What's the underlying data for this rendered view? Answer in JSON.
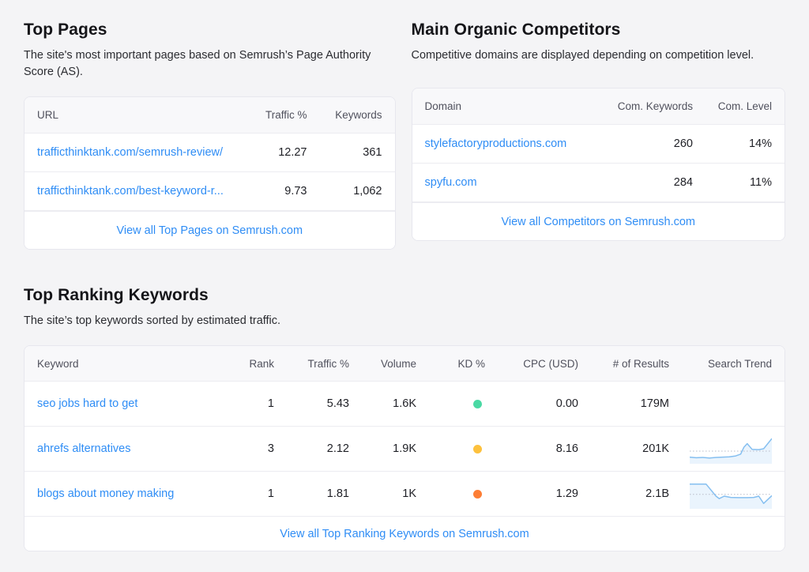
{
  "colors": {
    "link": "#2f8df5",
    "spark_line": "#85bff0",
    "spark_fill": "#eaf4fd",
    "spark_dotted": "#b9bcc9",
    "kd_green": "#4ad9a4",
    "kd_yellow": "#fdc13d",
    "kd_orange": "#fd7e35"
  },
  "top_pages": {
    "title": "Top Pages",
    "description": "The site's most important pages based on Semrush’s Page Authority Score (AS).",
    "columns": {
      "url": "URL",
      "traffic": "Traffic %",
      "keywords": "Keywords"
    },
    "rows": [
      {
        "url": "trafficthinktank.com/semrush-review/",
        "traffic": "12.27",
        "keywords": "361"
      },
      {
        "url": "trafficthinktank.com/best-keyword-r...",
        "traffic": "9.73",
        "keywords": "1,062"
      }
    ],
    "footer_link": "View all Top Pages on Semrush.com"
  },
  "competitors": {
    "title": "Main Organic Competitors",
    "description": "Competitive domains are displayed depending on competition level.",
    "columns": {
      "domain": "Domain",
      "com_keywords": "Com. Keywords",
      "com_level": "Com. Level"
    },
    "rows": [
      {
        "domain": "stylefactoryproductions.com",
        "com_keywords": "260",
        "com_level": "14%"
      },
      {
        "domain": "spyfu.com",
        "com_keywords": "284",
        "com_level": "11%"
      }
    ],
    "footer_link": "View all Competitors on Semrush.com"
  },
  "top_keywords": {
    "title": "Top Ranking Keywords",
    "description": "The site’s top keywords sorted by estimated traffic.",
    "columns": {
      "keyword": "Keyword",
      "rank": "Rank",
      "traffic": "Traffic %",
      "volume": "Volume",
      "kd": "KD %",
      "cpc": "CPC (USD)",
      "results": "# of Results",
      "trend": "Search Trend"
    },
    "rows": [
      {
        "keyword": "seo jobs hard to get",
        "rank": "1",
        "traffic": "5.43",
        "volume": "1.6K",
        "kd_color": "#4ad9a4",
        "cpc": "0.00",
        "results": "179M",
        "trend": [],
        "trend_mid": 0
      },
      {
        "keyword": "ahrefs alternatives",
        "rank": "3",
        "traffic": "2.12",
        "volume": "1.9K",
        "kd_color": "#fdc13d",
        "cpc": "8.16",
        "results": "201K",
        "trend": [
          [
            0,
            78
          ],
          [
            8,
            80
          ],
          [
            16,
            79
          ],
          [
            24,
            81
          ],
          [
            32,
            79
          ],
          [
            40,
            78
          ],
          [
            48,
            77
          ],
          [
            56,
            74
          ],
          [
            62,
            68
          ],
          [
            66,
            45
          ],
          [
            70,
            33
          ],
          [
            76,
            52
          ],
          [
            84,
            53
          ],
          [
            90,
            50
          ],
          [
            100,
            16
          ]
        ],
        "trend_mid": 58
      },
      {
        "keyword": "blogs about money making",
        "rank": "1",
        "traffic": "1.81",
        "volume": "1K",
        "kd_color": "#fd7e35",
        "cpc": "1.29",
        "results": "2.1B",
        "trend": [
          [
            0,
            18
          ],
          [
            20,
            18
          ],
          [
            32,
            58
          ],
          [
            36,
            66
          ],
          [
            42,
            58
          ],
          [
            50,
            62
          ],
          [
            60,
            63
          ],
          [
            70,
            63
          ],
          [
            78,
            62
          ],
          [
            84,
            58
          ],
          [
            90,
            82
          ],
          [
            100,
            56
          ]
        ],
        "trend_mid": 52
      }
    ],
    "footer_link": "View all Top Ranking Keywords on Semrush.com"
  }
}
